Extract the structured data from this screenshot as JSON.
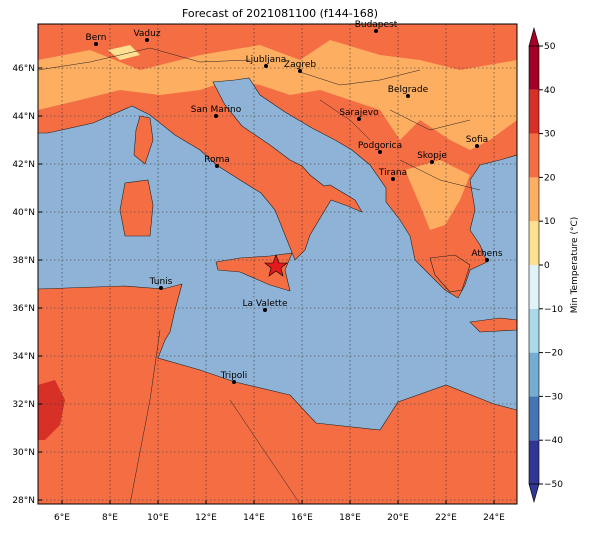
{
  "title": "Forecast of 2021081100 (f144-168)",
  "map": {
    "xticks": [
      {
        "value": 6,
        "label": "6°E"
      },
      {
        "value": 8,
        "label": "8°E"
      },
      {
        "value": 10,
        "label": "10°E"
      },
      {
        "value": 12,
        "label": "12°E"
      },
      {
        "value": 14,
        "label": "14°E"
      },
      {
        "value": 16,
        "label": "16°E"
      },
      {
        "value": 18,
        "label": "18°E"
      },
      {
        "value": 20,
        "label": "20°E"
      },
      {
        "value": 22,
        "label": "22°E"
      },
      {
        "value": 24,
        "label": "24°E"
      }
    ],
    "yticks": [
      {
        "value": 28,
        "label": "28°N"
      },
      {
        "value": 30,
        "label": "30°N"
      },
      {
        "value": 32,
        "label": "32°N"
      },
      {
        "value": 34,
        "label": "34°N"
      },
      {
        "value": 36,
        "label": "36°N"
      },
      {
        "value": 38,
        "label": "38°N"
      },
      {
        "value": 40,
        "label": "40°N"
      },
      {
        "value": 42,
        "label": "42°N"
      },
      {
        "value": 44,
        "label": "44°N"
      },
      {
        "value": 46,
        "label": "46°N"
      }
    ],
    "cities": [
      "Bern",
      "Vaduz",
      "Budapest",
      "Ljubljana",
      "Zagreb",
      "Belgrade",
      "San Marino",
      "Sarajevo",
      "Sofia",
      "Podgorica",
      "Skopje",
      "Roma",
      "Tirana",
      "Athens",
      "Tunis",
      "La Valette",
      "Tripoli"
    ]
  },
  "colorbar": {
    "label": "Min Temperature (°C)",
    "ticks": [
      {
        "value": -50,
        "label": "−50"
      },
      {
        "value": -40,
        "label": "−40"
      },
      {
        "value": -30,
        "label": "−30"
      },
      {
        "value": -20,
        "label": "−20"
      },
      {
        "value": -10,
        "label": "−10"
      },
      0,
      10,
      20,
      30,
      40,
      50
    ],
    "colors": [
      "#313695",
      "#4575b4",
      "#74add1",
      "#abd9e9",
      "#e0f3f8",
      "#fee090",
      "#fdae61",
      "#f46d43",
      "#d73027",
      "#a50026"
    ]
  }
}
